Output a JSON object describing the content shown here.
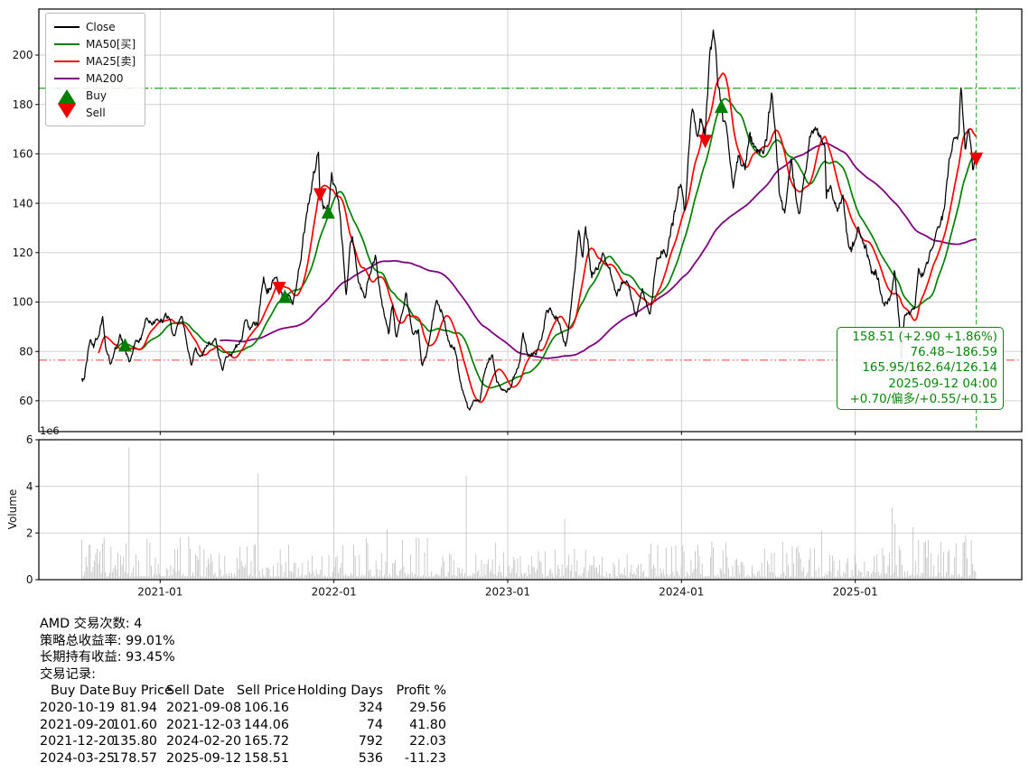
{
  "chart_data": {
    "type": "line",
    "symbol": "AMD",
    "x_axis": {
      "start": "2020-07-20",
      "end": "2025-09-12",
      "tick_dates": [
        "2021-01-01",
        "2022-01-01",
        "2023-01-01",
        "2024-01-01",
        "2025-01-01"
      ],
      "tick_labels": [
        "2021-01",
        "2022-01",
        "2023-01",
        "2024-01",
        "2025-01"
      ]
    },
    "price_axis": {
      "ticks": [
        60,
        80,
        100,
        120,
        140,
        160,
        180,
        200
      ],
      "min": 47.5,
      "max": 218.6
    },
    "volume_axis": {
      "label": "Volume",
      "scale_label": "1e6",
      "ticks": [
        0,
        2,
        4,
        6
      ],
      "max": 6
    },
    "jitter": 0.02,
    "series": {
      "close": {
        "name": "Close",
        "color": "#000000",
        "anchors": [
          [
            "2020-07-20",
            69.0
          ],
          [
            "2020-07-24",
            68.0
          ],
          [
            "2020-07-31",
            77.5
          ],
          [
            "2020-08-07",
            84.5
          ],
          [
            "2020-08-14",
            81.5
          ],
          [
            "2020-08-24",
            86.5
          ],
          [
            "2020-09-02",
            93.5
          ],
          [
            "2020-09-09",
            81.0
          ],
          [
            "2020-09-18",
            74.8
          ],
          [
            "2020-09-29",
            81.5
          ],
          [
            "2020-10-08",
            86.8
          ],
          [
            "2020-10-19",
            81.94
          ],
          [
            "2020-10-29",
            75.3
          ],
          [
            "2020-11-09",
            84.0
          ],
          [
            "2020-11-16",
            84.0
          ],
          [
            "2020-11-24",
            86.0
          ],
          [
            "2020-12-04",
            93.0
          ],
          [
            "2020-12-14",
            91.0
          ],
          [
            "2020-12-22",
            91.8
          ],
          [
            "2021-01-04",
            92.0
          ],
          [
            "2021-01-11",
            94.7
          ],
          [
            "2021-01-21",
            92.5
          ],
          [
            "2021-01-29",
            85.6
          ],
          [
            "2021-02-08",
            91.0
          ],
          [
            "2021-02-16",
            92.5
          ],
          [
            "2021-02-25",
            84.0
          ],
          [
            "2021-03-08",
            75.0
          ],
          [
            "2021-03-16",
            83.0
          ],
          [
            "2021-03-24",
            77.0
          ],
          [
            "2021-04-06",
            81.5
          ],
          [
            "2021-04-16",
            83.0
          ],
          [
            "2021-04-27",
            85.5
          ],
          [
            "2021-05-04",
            78.5
          ],
          [
            "2021-05-12",
            73.0
          ],
          [
            "2021-05-21",
            77.0
          ],
          [
            "2021-06-01",
            80.0
          ],
          [
            "2021-06-11",
            81.5
          ],
          [
            "2021-06-22",
            85.0
          ],
          [
            "2021-06-30",
            93.9
          ],
          [
            "2021-07-08",
            88.0
          ],
          [
            "2021-07-16",
            90.5
          ],
          [
            "2021-07-26",
            91.0
          ],
          [
            "2021-08-02",
            106.0
          ],
          [
            "2021-08-06",
            110.5
          ],
          [
            "2021-08-13",
            104.0
          ],
          [
            "2021-08-23",
            106.5
          ],
          [
            "2021-08-31",
            111.0
          ],
          [
            "2021-09-08",
            106.16
          ],
          [
            "2021-09-20",
            101.6
          ],
          [
            "2021-09-28",
            102.5
          ],
          [
            "2021-10-06",
            99.5
          ],
          [
            "2021-10-15",
            107.0
          ],
          [
            "2021-10-26",
            122.0
          ],
          [
            "2021-11-05",
            136.0
          ],
          [
            "2021-11-16",
            146.0
          ],
          [
            "2021-11-23",
            156.0
          ],
          [
            "2021-11-29",
            161.9
          ],
          [
            "2021-12-03",
            144.06
          ],
          [
            "2021-12-09",
            138.0
          ],
          [
            "2021-12-20",
            135.8
          ],
          [
            "2021-12-27",
            154.4
          ],
          [
            "2022-01-04",
            145.0
          ],
          [
            "2022-01-13",
            138.0
          ],
          [
            "2022-01-21",
            117.0
          ],
          [
            "2022-01-27",
            102.5
          ],
          [
            "2022-02-04",
            123.0
          ],
          [
            "2022-02-09",
            125.7
          ],
          [
            "2022-02-23",
            107.0
          ],
          [
            "2022-03-07",
            102.5
          ],
          [
            "2022-03-17",
            112.0
          ],
          [
            "2022-03-29",
            120.5
          ],
          [
            "2022-04-11",
            99.5
          ],
          [
            "2022-04-26",
            86.5
          ],
          [
            "2022-05-04",
            98.5
          ],
          [
            "2022-05-12",
            84.5
          ],
          [
            "2022-05-23",
            93.0
          ],
          [
            "2022-06-02",
            104.5
          ],
          [
            "2022-06-16",
            85.0
          ],
          [
            "2022-06-27",
            89.0
          ],
          [
            "2022-07-05",
            73.5
          ],
          [
            "2022-07-14",
            77.0
          ],
          [
            "2022-07-29",
            94.5
          ],
          [
            "2022-08-04",
            99.5
          ],
          [
            "2022-08-15",
            97.0
          ],
          [
            "2022-08-24",
            89.5
          ],
          [
            "2022-09-01",
            83.0
          ],
          [
            "2022-09-12",
            81.5
          ],
          [
            "2022-09-16",
            76.5
          ],
          [
            "2022-09-23",
            66.5
          ],
          [
            "2022-09-30",
            63.4
          ],
          [
            "2022-10-07",
            58.5
          ],
          [
            "2022-10-13",
            55.2
          ],
          [
            "2022-10-21",
            59.0
          ],
          [
            "2022-10-31",
            60.5
          ],
          [
            "2022-11-04",
            60.0
          ],
          [
            "2022-11-11",
            70.8
          ],
          [
            "2022-11-23",
            76.5
          ],
          [
            "2022-11-30",
            77.6
          ],
          [
            "2022-12-09",
            68.5
          ],
          [
            "2022-12-16",
            66.5
          ],
          [
            "2022-12-28",
            63.3
          ],
          [
            "2023-01-06",
            64.5
          ],
          [
            "2023-01-17",
            71.5
          ],
          [
            "2023-01-26",
            75.5
          ],
          [
            "2023-02-02",
            88.0
          ],
          [
            "2023-02-10",
            79.5
          ],
          [
            "2023-02-21",
            78.5
          ],
          [
            "2023-03-02",
            78.5
          ],
          [
            "2023-03-14",
            84.5
          ],
          [
            "2023-03-23",
            97.0
          ],
          [
            "2023-03-31",
            98.0
          ],
          [
            "2023-04-13",
            93.5
          ],
          [
            "2023-04-25",
            87.5
          ],
          [
            "2023-05-03",
            82.0
          ],
          [
            "2023-05-11",
            92.5
          ],
          [
            "2023-05-19",
            107.5
          ],
          [
            "2023-05-30",
            127.3
          ],
          [
            "2023-06-07",
            117.5
          ],
          [
            "2023-06-13",
            132.0
          ],
          [
            "2023-06-26",
            110.5
          ],
          [
            "2023-07-07",
            113.5
          ],
          [
            "2023-07-19",
            118.5
          ],
          [
            "2023-07-28",
            114.0
          ],
          [
            "2023-08-04",
            112.5
          ],
          [
            "2023-08-18",
            102.5
          ],
          [
            "2023-08-29",
            108.0
          ],
          [
            "2023-09-11",
            105.5
          ],
          [
            "2023-09-27",
            95.5
          ],
          [
            "2023-10-11",
            104.5
          ],
          [
            "2023-10-27",
            93.5
          ],
          [
            "2023-11-10",
            117.0
          ],
          [
            "2023-11-21",
            122.5
          ],
          [
            "2023-12-01",
            119.5
          ],
          [
            "2023-12-11",
            128.5
          ],
          [
            "2023-12-28",
            147.5
          ],
          [
            "2024-01-08",
            137.5
          ],
          [
            "2024-01-24",
            178.0
          ],
          [
            "2024-02-01",
            167.5
          ],
          [
            "2024-02-12",
            172.5
          ],
          [
            "2024-02-20",
            165.72
          ],
          [
            "2024-03-01",
            202.0
          ],
          [
            "2024-03-08",
            211.38
          ],
          [
            "2024-03-19",
            189.5
          ],
          [
            "2024-03-25",
            178.57
          ],
          [
            "2024-04-05",
            170.0
          ],
          [
            "2024-04-19",
            146.6
          ],
          [
            "2024-04-30",
            158.5
          ],
          [
            "2024-05-14",
            153.5
          ],
          [
            "2024-05-24",
            166.5
          ],
          [
            "2024-06-06",
            160.5
          ],
          [
            "2024-06-21",
            158.5
          ],
          [
            "2024-07-10",
            184.5
          ],
          [
            "2024-07-25",
            144.5
          ],
          [
            "2024-08-05",
            134.0
          ],
          [
            "2024-08-19",
            155.5
          ],
          [
            "2024-09-06",
            135.5
          ],
          [
            "2024-09-26",
            164.5
          ],
          [
            "2024-10-08",
            170.9
          ],
          [
            "2024-10-29",
            163.5
          ],
          [
            "2024-11-01",
            143.5
          ],
          [
            "2024-11-11",
            147.5
          ],
          [
            "2024-11-22",
            137.5
          ],
          [
            "2024-12-06",
            142.5
          ],
          [
            "2024-12-20",
            119.5
          ],
          [
            "2025-01-07",
            128.5
          ],
          [
            "2025-01-24",
            122.5
          ],
          [
            "2025-02-04",
            111.5
          ],
          [
            "2025-02-14",
            113.5
          ],
          [
            "2025-02-28",
            99.5
          ],
          [
            "2025-03-14",
            100.5
          ],
          [
            "2025-03-25",
            112.5
          ],
          [
            "2025-04-03",
            94.5
          ],
          [
            "2025-04-08",
            76.9
          ],
          [
            "2025-04-14",
            95.5
          ],
          [
            "2025-04-24",
            96.5
          ],
          [
            "2025-05-06",
            98.6
          ],
          [
            "2025-05-14",
            113.5
          ],
          [
            "2025-05-23",
            110.5
          ],
          [
            "2025-06-06",
            118.5
          ],
          [
            "2025-06-24",
            128.5
          ],
          [
            "2025-07-08",
            138.5
          ],
          [
            "2025-07-15",
            155.5
          ],
          [
            "2025-07-28",
            166.5
          ],
          [
            "2025-08-06",
            163.5
          ],
          [
            "2025-08-11",
            185.9
          ],
          [
            "2025-08-20",
            160.5
          ],
          [
            "2025-08-28",
            168.0
          ],
          [
            "2025-09-05",
            152.5
          ],
          [
            "2025-09-12",
            158.51
          ]
        ]
      },
      "ma25": {
        "name": "MA25[卖]",
        "color": "#ff0000",
        "window": 25
      },
      "ma50": {
        "name": "MA50[买]",
        "color": "#008000",
        "window": 50
      },
      "ma200": {
        "name": "MA200",
        "color": "#800080",
        "window": 200
      }
    },
    "hlines": [
      {
        "value": 186.59,
        "color": "#15a015",
        "style": "dashdot",
        "opacity": 0.85
      },
      {
        "value": 76.48,
        "color": "#ff2222",
        "style": "dashdotdot",
        "opacity": 0.65
      }
    ],
    "vline": {
      "date": "2025-09-12",
      "color": "#2aa52a",
      "style": "dashed",
      "opacity": 0.85
    },
    "trades": [
      {
        "buy_date": "2020-10-19",
        "buy_price": 81.94,
        "sell_date": "2021-09-08",
        "sell_price": 106.16,
        "holding_days": 324,
        "profit_pct": 29.56
      },
      {
        "buy_date": "2021-09-20",
        "buy_price": 101.6,
        "sell_date": "2021-12-03",
        "sell_price": 144.06,
        "holding_days": 74,
        "profit_pct": 41.8
      },
      {
        "buy_date": "2021-12-20",
        "buy_price": 135.8,
        "sell_date": "2024-02-20",
        "sell_price": 165.72,
        "holding_days": 792,
        "profit_pct": 22.03
      },
      {
        "buy_date": "2024-03-25",
        "buy_price": 178.57,
        "sell_date": "2025-09-12",
        "sell_price": 158.51,
        "holding_days": 536,
        "profit_pct": -11.23
      }
    ],
    "marker_colors": {
      "buy": "#008000",
      "sell": "#ee0000"
    },
    "volume_bars": {
      "color": "#c2c2c2",
      "base_min": 0.12,
      "base_scale": 1.55,
      "eras": [
        [
          2021.2,
          1.15
        ],
        [
          2022.0,
          0.95
        ],
        [
          2023.0,
          1.1
        ],
        [
          2023.8,
          0.8
        ],
        [
          2024.7,
          1.0
        ],
        [
          2025.2,
          0.85
        ],
        [
          9999,
          1.05
        ]
      ],
      "spikes": [
        [
          "2020-10-27",
          5.68
        ],
        [
          "2021-07-27",
          4.55
        ],
        [
          "2022-04-22",
          2.15
        ],
        [
          "2022-10-07",
          4.45
        ],
        [
          "2023-05-02",
          2.6
        ],
        [
          "2024-10-23",
          2.1
        ],
        [
          "2025-03-21",
          3.1
        ],
        [
          "2025-03-26",
          2.4
        ],
        [
          "2025-05-02",
          2.25
        ],
        [
          "2025-08-22",
          1.9
        ]
      ]
    },
    "info_box": {
      "color": "#0a870a",
      "lines": [
        "158.51 (+2.90 +1.86%)",
        "76.48~186.59",
        "165.95/162.64/126.14",
        "2025-09-12 04:00",
        "+0.70/偏多/+0.55/+0.15"
      ]
    },
    "grid": true,
    "legend_position": "upper-left"
  },
  "legend": {
    "items": [
      {
        "label": "Close"
      },
      {
        "label": "MA50[买]"
      },
      {
        "label": "MA25[卖]"
      },
      {
        "label": "MA200"
      },
      {
        "label": "Buy"
      },
      {
        "label": "Sell"
      }
    ]
  },
  "stats": {
    "line1": "AMD 交易次数: 4",
    "line2": "策略总收益率: 99.01%",
    "line3": "长期持有收益: 93.45%",
    "line4": "交易记录:",
    "headers": [
      "Buy Date",
      "Buy Price",
      "Sell Date",
      "Sell Price",
      "Holding Days",
      "Profit %"
    ]
  }
}
